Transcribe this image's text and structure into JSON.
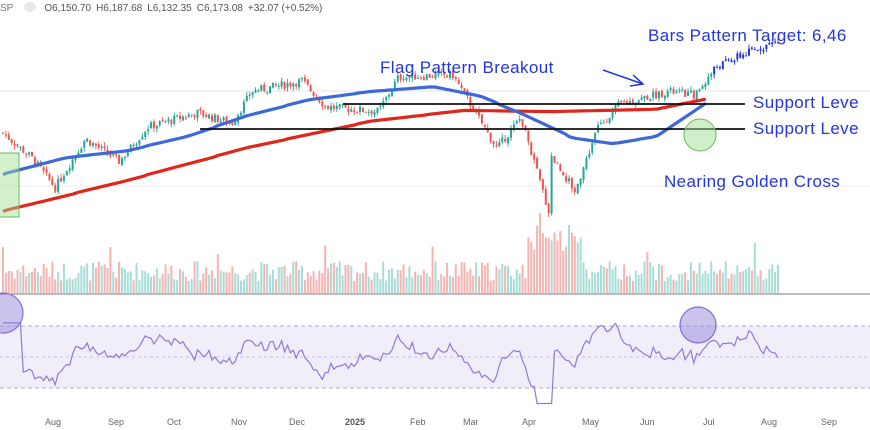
{
  "ohlc": {
    "symbol": "SP",
    "open": "O6,150.70",
    "high": "H6,187.68",
    "low": "L6,132.35",
    "close": "C6,173.08",
    "change": "+32.07 (+0.52%)"
  },
  "annotations": {
    "bars_target": "Bars Pattern Target: 6,46",
    "flag_breakout": "Flag Pattern Breakout",
    "support_1": "Support Leve",
    "support_2": "Support Leve",
    "golden_cross": "Nearing Golden Cross"
  },
  "colors": {
    "up": "#26a69a",
    "down": "#ef5350",
    "sma50": "#3c68d8",
    "sma200": "#e0271e",
    "rsi": "#8f7ad6",
    "annotation": "#2336d9",
    "highlight": "#9ee090",
    "rsi_circle": "#7d72d9"
  },
  "chart_data": {
    "type": "candlestick",
    "x_axis": [
      "Aug",
      "Sep",
      "Oct",
      "Nov",
      "Dec",
      "2025",
      "Feb",
      "Mar",
      "Apr",
      "May",
      "Jun",
      "Jul",
      "Aug",
      "Sep"
    ],
    "close_trend": [
      [
        "2024-07-10",
        5650
      ],
      [
        "2024-07-25",
        5430
      ],
      [
        "2024-08-05",
        5190
      ],
      [
        "2024-08-20",
        5600
      ],
      [
        "2024-09-06",
        5410
      ],
      [
        "2024-09-20",
        5700
      ],
      [
        "2024-10-15",
        5820
      ],
      [
        "2024-11-01",
        5730
      ],
      [
        "2024-11-11",
        6000
      ],
      [
        "2024-12-06",
        6090
      ],
      [
        "2024-12-18",
        5870
      ],
      [
        "2025-01-13",
        5830
      ],
      [
        "2025-01-23",
        6120
      ],
      [
        "2025-02-19",
        6140
      ],
      [
        "2025-03-13",
        5520
      ],
      [
        "2025-03-25",
        5780
      ],
      [
        "2025-04-08",
        4980
      ],
      [
        "2025-04-09",
        5460
      ],
      [
        "2025-04-21",
        5160
      ],
      [
        "2025-05-02",
        5690
      ],
      [
        "2025-05-13",
        5890
      ],
      [
        "2025-06-06",
        6000
      ],
      [
        "2025-06-20",
        5970
      ],
      [
        "2025-06-30",
        6205
      ],
      [
        "2025-07-10",
        6280
      ],
      [
        "2025-07-25",
        6390
      ],
      [
        "2025-07-31",
        6420
      ]
    ],
    "sma50": [
      [
        "2024-07-10",
        5300
      ],
      [
        "2024-08-10",
        5440
      ],
      [
        "2024-09-10",
        5500
      ],
      [
        "2024-10-10",
        5620
      ],
      [
        "2024-11-10",
        5800
      ],
      [
        "2024-12-10",
        5930
      ],
      [
        "2025-01-10",
        6000
      ],
      [
        "2025-02-10",
        6040
      ],
      [
        "2025-03-05",
        5960
      ],
      [
        "2025-03-25",
        5820
      ],
      [
        "2025-04-20",
        5610
      ],
      [
        "2025-05-10",
        5560
      ],
      [
        "2025-06-01",
        5620
      ],
      [
        "2025-06-25",
        5900
      ]
    ],
    "sma200": [
      [
        "2024-07-10",
        4990
      ],
      [
        "2024-09-10",
        5250
      ],
      [
        "2024-11-10",
        5530
      ],
      [
        "2025-01-10",
        5750
      ],
      [
        "2025-02-25",
        5840
      ],
      [
        "2025-04-10",
        5830
      ],
      [
        "2025-06-01",
        5850
      ],
      [
        "2025-06-25",
        5935
      ]
    ],
    "support_levels": [
      6140,
      5930
    ],
    "rsi": {
      "upper_band": 70,
      "lower_band": 30,
      "bands": [
        70,
        50,
        30
      ]
    },
    "volume": "relative"
  },
  "axis_bold": "2025"
}
